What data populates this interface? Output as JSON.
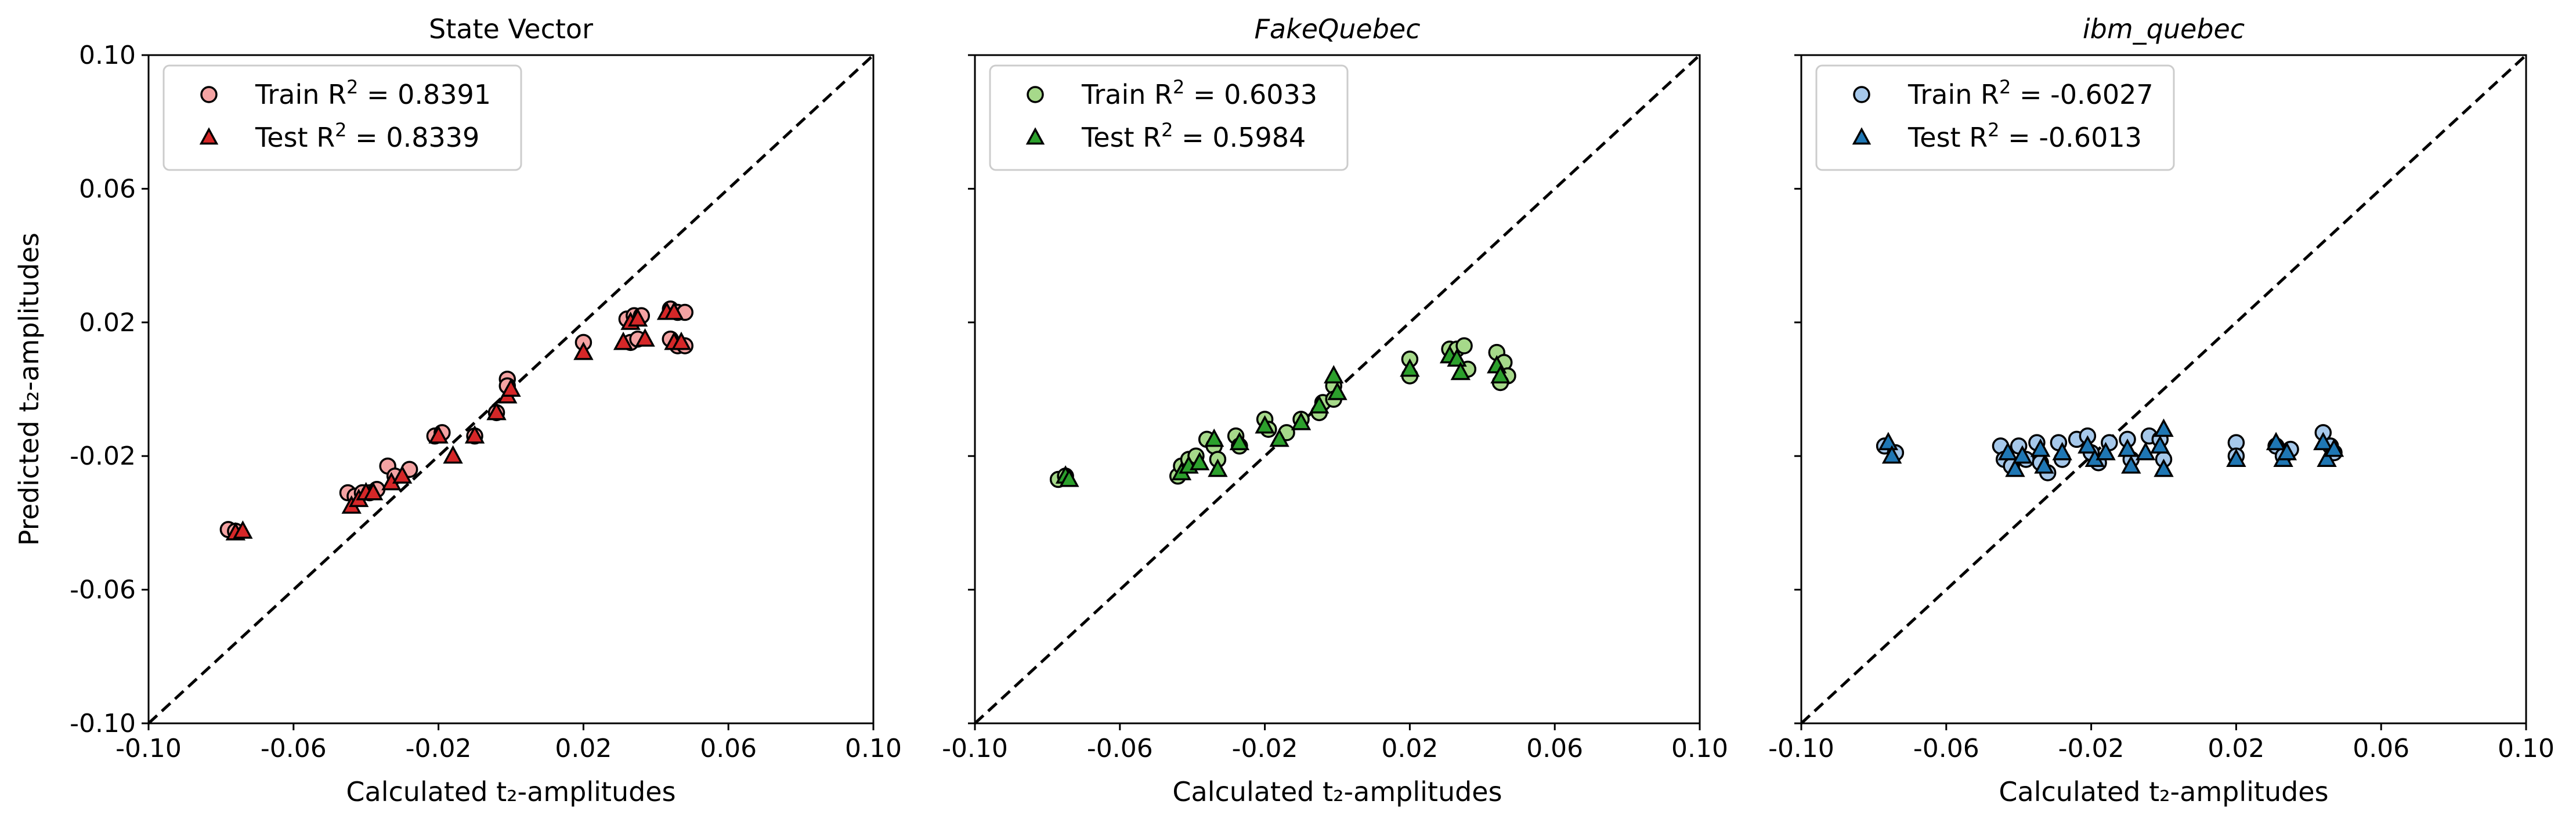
{
  "chart_data": [
    {
      "type": "scatter",
      "title": "State Vector",
      "title_italic": false,
      "xlabel": "Calculated t₂-amplitudes",
      "ylabel": "Predicted t₂-amplitudes",
      "xlim": [
        -0.1,
        0.1
      ],
      "ylim": [
        -0.1,
        0.1
      ],
      "xticks": [
        "-0.10",
        "-0.06",
        "-0.02",
        "0.02",
        "0.06",
        "0.10"
      ],
      "yticks": [
        "-0.10",
        "-0.06",
        "-0.02",
        "0.02",
        "0.06",
        "0.10"
      ],
      "show_yticklabels": true,
      "reference_line": "y = x (dashed)",
      "grid": false,
      "legend_position": "upper-left",
      "colors": {
        "train": "#f4a3a3",
        "test": "#d62728"
      },
      "series": [
        {
          "name": "Train R² = 0.8391",
          "label_prefix": "Train",
          "label_value": "0.8391",
          "marker": "circle",
          "points": [
            [
              -0.078,
              -0.042
            ],
            [
              -0.076,
              -0.0425
            ],
            [
              -0.045,
              -0.031
            ],
            [
              -0.043,
              -0.032
            ],
            [
              -0.041,
              -0.031
            ],
            [
              -0.039,
              -0.031
            ],
            [
              -0.037,
              -0.03
            ],
            [
              -0.034,
              -0.023
            ],
            [
              -0.032,
              -0.026
            ],
            [
              -0.028,
              -0.024
            ],
            [
              -0.021,
              -0.014
            ],
            [
              -0.019,
              -0.013
            ],
            [
              -0.01,
              -0.014
            ],
            [
              -0.004,
              -0.007
            ],
            [
              -0.001,
              0.003
            ],
            [
              -0.001,
              0.001
            ],
            [
              0.02,
              0.014
            ],
            [
              0.032,
              0.021
            ],
            [
              0.034,
              0.022
            ],
            [
              0.036,
              0.022
            ],
            [
              0.044,
              0.024
            ],
            [
              0.046,
              0.023
            ],
            [
              0.048,
              0.023
            ],
            [
              0.033,
              0.014
            ],
            [
              0.035,
              0.015
            ],
            [
              0.044,
              0.015
            ],
            [
              0.046,
              0.013
            ],
            [
              0.048,
              0.013
            ]
          ]
        },
        {
          "name": "Test R² = 0.8339",
          "label_prefix": "Test",
          "label_value": "0.8339",
          "marker": "triangle",
          "points": [
            [
              -0.076,
              -0.043
            ],
            [
              -0.074,
              -0.0425
            ],
            [
              -0.044,
              -0.035
            ],
            [
              -0.042,
              -0.033
            ],
            [
              -0.04,
              -0.031
            ],
            [
              -0.038,
              -0.031
            ],
            [
              -0.033,
              -0.028
            ],
            [
              -0.03,
              -0.026
            ],
            [
              -0.02,
              -0.014
            ],
            [
              -0.016,
              -0.02
            ],
            [
              -0.01,
              -0.014
            ],
            [
              -0.004,
              -0.007
            ],
            [
              -0.001,
              -0.002
            ],
            [
              0.0,
              0.0
            ],
            [
              0.02,
              0.011
            ],
            [
              0.031,
              0.014
            ],
            [
              0.033,
              0.02
            ],
            [
              0.035,
              0.021
            ],
            [
              0.037,
              0.015
            ],
            [
              0.043,
              0.023
            ],
            [
              0.045,
              0.023
            ],
            [
              0.045,
              0.014
            ],
            [
              0.047,
              0.014
            ]
          ]
        }
      ]
    },
    {
      "type": "scatter",
      "title": "FakeQuebec",
      "title_italic": true,
      "xlabel": "Calculated t₂-amplitudes",
      "ylabel": "",
      "xlim": [
        -0.1,
        0.1
      ],
      "ylim": [
        -0.1,
        0.1
      ],
      "xticks": [
        "-0.10",
        "-0.06",
        "-0.02",
        "0.02",
        "0.06",
        "0.10"
      ],
      "yticks": [
        "-0.10",
        "-0.06",
        "-0.02",
        "0.02",
        "0.06",
        "0.10"
      ],
      "show_yticklabels": false,
      "reference_line": "y = x (dashed)",
      "grid": false,
      "legend_position": "upper-left",
      "colors": {
        "train": "#a6d98a",
        "test": "#2ca02c"
      },
      "series": [
        {
          "name": "Train R² = 0.6033",
          "label_prefix": "Train",
          "label_value": "0.6033",
          "marker": "circle",
          "points": [
            [
              -0.077,
              -0.027
            ],
            [
              -0.075,
              -0.026
            ],
            [
              -0.044,
              -0.026
            ],
            [
              -0.043,
              -0.023
            ],
            [
              -0.041,
              -0.021
            ],
            [
              -0.039,
              -0.02
            ],
            [
              -0.036,
              -0.015
            ],
            [
              -0.034,
              -0.017
            ],
            [
              -0.033,
              -0.021
            ],
            [
              -0.028,
              -0.014
            ],
            [
              -0.027,
              -0.017
            ],
            [
              -0.02,
              -0.009
            ],
            [
              -0.019,
              -0.012
            ],
            [
              -0.014,
              -0.013
            ],
            [
              -0.01,
              -0.009
            ],
            [
              -0.005,
              -0.007
            ],
            [
              -0.004,
              -0.004
            ],
            [
              -0.001,
              0.001
            ],
            [
              -0.001,
              -0.003
            ],
            [
              0.02,
              0.009
            ],
            [
              0.02,
              0.004
            ],
            [
              0.031,
              0.012
            ],
            [
              0.033,
              0.012
            ],
            [
              0.035,
              0.013
            ],
            [
              0.036,
              0.006
            ],
            [
              0.044,
              0.011
            ],
            [
              0.046,
              0.008
            ],
            [
              0.047,
              0.004
            ],
            [
              0.045,
              0.002
            ]
          ]
        },
        {
          "name": "Test R² = 0.5984",
          "label_prefix": "Test",
          "label_value": "0.5984",
          "marker": "triangle",
          "points": [
            [
              -0.075,
              -0.026
            ],
            [
              -0.074,
              -0.027
            ],
            [
              -0.043,
              -0.025
            ],
            [
              -0.041,
              -0.023
            ],
            [
              -0.038,
              -0.022
            ],
            [
              -0.034,
              -0.015
            ],
            [
              -0.033,
              -0.024
            ],
            [
              -0.027,
              -0.016
            ],
            [
              -0.02,
              -0.011
            ],
            [
              -0.016,
              -0.015
            ],
            [
              -0.01,
              -0.01
            ],
            [
              -0.005,
              -0.005
            ],
            [
              -0.001,
              0.004
            ],
            [
              0.0,
              -0.001
            ],
            [
              0.02,
              0.006
            ],
            [
              0.031,
              0.01
            ],
            [
              0.033,
              0.009
            ],
            [
              0.034,
              0.005
            ],
            [
              0.044,
              0.007
            ],
            [
              0.045,
              0.004
            ]
          ]
        }
      ]
    },
    {
      "type": "scatter",
      "title": "ibm_quebec",
      "title_italic": true,
      "xlabel": "Calculated t₂-amplitudes",
      "ylabel": "",
      "xlim": [
        -0.1,
        0.1
      ],
      "ylim": [
        -0.1,
        0.1
      ],
      "xticks": [
        "-0.10",
        "-0.06",
        "-0.02",
        "0.02",
        "0.06",
        "0.10"
      ],
      "yticks": [
        "-0.10",
        "-0.06",
        "-0.02",
        "0.02",
        "0.06",
        "0.10"
      ],
      "show_yticklabels": false,
      "reference_line": "y = x (dashed)",
      "grid": false,
      "legend_position": "upper-left",
      "colors": {
        "train": "#a6c8ea",
        "test": "#1f77b4"
      },
      "series": [
        {
          "name": "Train R² = -0.6027",
          "label_prefix": "Train",
          "label_value": "-0.6027",
          "marker": "circle",
          "points": [
            [
              -0.077,
              -0.017
            ],
            [
              -0.074,
              -0.019
            ],
            [
              -0.045,
              -0.017
            ],
            [
              -0.044,
              -0.021
            ],
            [
              -0.042,
              -0.023
            ],
            [
              -0.04,
              -0.017
            ],
            [
              -0.038,
              -0.021
            ],
            [
              -0.035,
              -0.016
            ],
            [
              -0.034,
              -0.022
            ],
            [
              -0.032,
              -0.025
            ],
            [
              -0.029,
              -0.016
            ],
            [
              -0.028,
              -0.021
            ],
            [
              -0.024,
              -0.015
            ],
            [
              -0.021,
              -0.014
            ],
            [
              -0.02,
              -0.019
            ],
            [
              -0.018,
              -0.022
            ],
            [
              -0.015,
              -0.016
            ],
            [
              -0.01,
              -0.015
            ],
            [
              -0.009,
              -0.021
            ],
            [
              -0.004,
              -0.014
            ],
            [
              -0.001,
              -0.015
            ],
            [
              0.0,
              -0.021
            ],
            [
              0.02,
              -0.016
            ],
            [
              0.02,
              -0.02
            ],
            [
              0.031,
              -0.017
            ],
            [
              0.033,
              -0.02
            ],
            [
              0.035,
              -0.018
            ],
            [
              0.044,
              -0.013
            ],
            [
              0.046,
              -0.017
            ],
            [
              0.047,
              -0.019
            ]
          ]
        },
        {
          "name": "Test R² = -0.6013",
          "label_prefix": "Test",
          "label_value": "-0.6013",
          "marker": "triangle",
          "points": [
            [
              -0.076,
              -0.016
            ],
            [
              -0.075,
              -0.02
            ],
            [
              -0.043,
              -0.019
            ],
            [
              -0.041,
              -0.024
            ],
            [
              -0.039,
              -0.02
            ],
            [
              -0.034,
              -0.018
            ],
            [
              -0.033,
              -0.023
            ],
            [
              -0.028,
              -0.019
            ],
            [
              -0.021,
              -0.017
            ],
            [
              -0.019,
              -0.021
            ],
            [
              -0.016,
              -0.019
            ],
            [
              -0.01,
              -0.018
            ],
            [
              -0.009,
              -0.023
            ],
            [
              -0.005,
              -0.019
            ],
            [
              -0.001,
              -0.017
            ],
            [
              0.0,
              -0.024
            ],
            [
              0.0,
              -0.012
            ],
            [
              0.02,
              -0.021
            ],
            [
              0.031,
              -0.016
            ],
            [
              0.033,
              -0.021
            ],
            [
              0.034,
              -0.019
            ],
            [
              0.044,
              -0.016
            ],
            [
              0.045,
              -0.021
            ],
            [
              0.047,
              -0.018
            ]
          ]
        }
      ]
    }
  ]
}
